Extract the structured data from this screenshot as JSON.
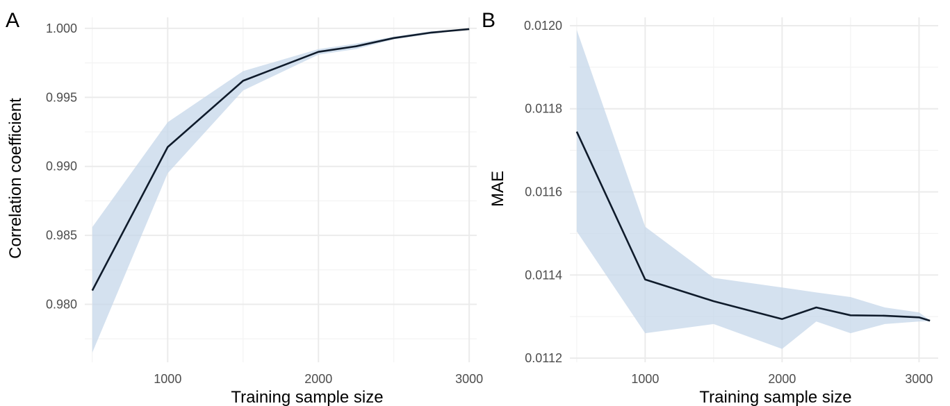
{
  "chart_data": [
    {
      "type": "line",
      "panel_label": "A",
      "xlabel": "Training sample size",
      "ylabel": "Correlation coefficient",
      "xlim": [
        450,
        3050
      ],
      "ylim": [
        0.9758,
        1.0008
      ],
      "x_ticks": [
        1000,
        2000,
        3000
      ],
      "x_tick_labels": [
        "1000",
        "2000",
        "3000"
      ],
      "y_ticks": [
        0.98,
        0.985,
        0.99,
        0.995,
        1.0
      ],
      "y_tick_labels": [
        "0.980",
        "0.985",
        "0.990",
        "0.995",
        "1.000"
      ],
      "grid": true,
      "series": [
        {
          "x": [
            500,
            1000,
            1500,
            2000,
            2250,
            2500,
            2750,
            3000
          ],
          "y": [
            0.981,
            0.9914,
            0.9962,
            0.9983,
            0.9987,
            0.9993,
            0.9997,
            0.99995
          ],
          "lower": [
            0.9765,
            0.9895,
            0.9955,
            0.9981,
            0.9985,
            0.9992,
            0.9996,
            0.99995
          ],
          "upper": [
            0.9856,
            0.9932,
            0.9969,
            0.9985,
            0.9989,
            0.9994,
            0.9998,
            0.99995
          ]
        }
      ]
    },
    {
      "type": "line",
      "panel_label": "B",
      "xlabel": "Training sample size",
      "ylabel": "MAE",
      "xlim": [
        450,
        3140
      ],
      "ylim": [
        0.01119,
        0.01202
      ],
      "x_ticks": [
        1000,
        2000,
        3000
      ],
      "x_tick_labels": [
        "1000",
        "2000",
        "3000"
      ],
      "y_ticks": [
        0.0112,
        0.0114,
        0.0116,
        0.0118,
        0.012
      ],
      "y_tick_labels": [
        "0.0112",
        "0.0114",
        "0.0116",
        "0.0118",
        "0.0120"
      ],
      "grid": true,
      "series": [
        {
          "x": [
            500,
            1000,
            1500,
            2000,
            2250,
            2500,
            2750,
            3000,
            3080
          ],
          "y": [
            0.011745,
            0.011389,
            0.011337,
            0.011294,
            0.011322,
            0.011303,
            0.011302,
            0.011298,
            0.01129
          ],
          "lower": [
            0.011505,
            0.01126,
            0.011282,
            0.011222,
            0.011288,
            0.01126,
            0.011282,
            0.011288,
            0.011289
          ],
          "upper": [
            0.01199,
            0.011516,
            0.011393,
            0.01137,
            0.011358,
            0.011347,
            0.011322,
            0.01131,
            0.011291
          ]
        }
      ]
    }
  ]
}
